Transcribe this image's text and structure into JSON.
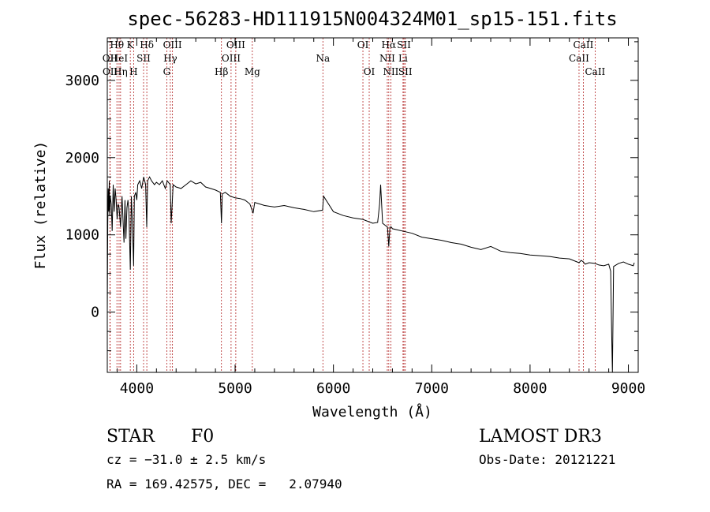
{
  "chart_data": {
    "type": "line",
    "title": "spec-56283-HD111915N004324M01_sp15-151.fits",
    "xlabel": "Wavelength (Å)",
    "ylabel": "Flux (relative)",
    "xlim": [
      3700,
      9100
    ],
    "ylim": [
      -780,
      3550
    ],
    "xticks": [
      4000,
      5000,
      6000,
      7000,
      8000,
      9000
    ],
    "yticks": [
      0,
      1000,
      2000,
      3000
    ],
    "grid": false,
    "series": [
      {
        "name": "spectrum",
        "x": [
          3700,
          3705,
          3710,
          3715,
          3720,
          3725,
          3730,
          3740,
          3750,
          3760,
          3770,
          3780,
          3790,
          3800,
          3810,
          3820,
          3835,
          3850,
          3860,
          3870,
          3880,
          3889,
          3900,
          3910,
          3920,
          3934,
          3945,
          3955,
          3968,
          3975,
          3990,
          4000,
          4010,
          4030,
          4050,
          4070,
          4090,
          4101,
          4110,
          4130,
          4150,
          4180,
          4200,
          4230,
          4260,
          4290,
          4310,
          4340,
          4350,
          4370,
          4400,
          4450,
          4500,
          4550,
          4600,
          4650,
          4700,
          4750,
          4800,
          4850,
          4861,
          4870,
          4900,
          4950,
          5000,
          5050,
          5100,
          5150,
          5170,
          5183,
          5200,
          5300,
          5400,
          5500,
          5600,
          5700,
          5800,
          5890,
          5900,
          6000,
          6100,
          6200,
          6300,
          6400,
          6450,
          6470,
          6480,
          6500,
          6540,
          6550,
          6563,
          6575,
          6590,
          6600,
          6700,
          6800,
          6900,
          7000,
          7100,
          7200,
          7300,
          7400,
          7500,
          7600,
          7650,
          7700,
          7800,
          7900,
          8000,
          8100,
          8200,
          8300,
          8400,
          8498,
          8520,
          8542,
          8560,
          8600,
          8662,
          8700,
          8750,
          8800,
          8820,
          8830,
          8838,
          8850,
          8900,
          8950,
          9000,
          9050,
          9060
        ],
        "values": [
          0,
          1150,
          1600,
          1300,
          1700,
          1250,
          1500,
          1400,
          1050,
          1650,
          1300,
          1600,
          1450,
          1200,
          1400,
          1350,
          1100,
          1500,
          1200,
          900,
          1450,
          950,
          1350,
          1450,
          1300,
          550,
          1500,
          1150,
          600,
          1500,
          1550,
          1450,
          1650,
          1700,
          1600,
          1750,
          1650,
          1100,
          1700,
          1750,
          1700,
          1650,
          1680,
          1650,
          1700,
          1600,
          1700,
          1650,
          1150,
          1650,
          1620,
          1600,
          1650,
          1700,
          1660,
          1680,
          1620,
          1600,
          1580,
          1550,
          1150,
          1530,
          1550,
          1500,
          1480,
          1470,
          1450,
          1400,
          1330,
          1280,
          1420,
          1380,
          1360,
          1380,
          1350,
          1330,
          1300,
          1320,
          1500,
          1300,
          1250,
          1220,
          1200,
          1150,
          1160,
          1400,
          1650,
          1150,
          1110,
          1100,
          850,
          1100,
          1100,
          1080,
          1050,
          1020,
          970,
          950,
          930,
          900,
          880,
          840,
          810,
          850,
          820,
          790,
          770,
          760,
          740,
          730,
          720,
          700,
          690,
          640,
          670,
          650,
          620,
          640,
          630,
          610,
          600,
          620,
          530,
          -300,
          -780,
          590,
          630,
          650,
          620,
          600,
          640
        ]
      }
    ],
    "spectral_lines": [
      {
        "label": "OII",
        "wavelength": 3727,
        "row": 2
      },
      {
        "label": "OII",
        "wavelength": 3729,
        "row": 3
      },
      {
        "label": "Hθ",
        "wavelength": 3798,
        "row": 1
      },
      {
        "label": "HeI",
        "wavelength": 3820,
        "row": 2
      },
      {
        "label": "Hη",
        "wavelength": 3835,
        "row": 3
      },
      {
        "label": "K",
        "wavelength": 3934,
        "row": 1
      },
      {
        "label": "SII",
        "wavelength": 4069,
        "row": 2
      },
      {
        "label": "H",
        "wavelength": 3968,
        "row": 3
      },
      {
        "label": "Hδ",
        "wavelength": 4102,
        "row": 1
      },
      {
        "label": "OIII",
        "wavelength": 4363,
        "row": 1
      },
      {
        "label": "Hγ",
        "wavelength": 4341,
        "row": 2
      },
      {
        "label": "G",
        "wavelength": 4305,
        "row": 3
      },
      {
        "label": "OIII",
        "wavelength": 5007,
        "row": 1
      },
      {
        "label": "OIII",
        "wavelength": 4959,
        "row": 2
      },
      {
        "label": "Hβ",
        "wavelength": 4861,
        "row": 3
      },
      {
        "label": "Mg",
        "wavelength": 5175,
        "row": 3
      },
      {
        "label": "Na",
        "wavelength": 5893,
        "row": 2
      },
      {
        "label": "OI",
        "wavelength": 6300,
        "row": 1
      },
      {
        "label": "OI",
        "wavelength": 6364,
        "row": 3
      },
      {
        "label": "Hα",
        "wavelength": 6563,
        "row": 1
      },
      {
        "label": "SII",
        "wavelength": 6717,
        "row": 1
      },
      {
        "label": "NII",
        "wavelength": 6548,
        "row": 2
      },
      {
        "label": "Li",
        "wavelength": 6708,
        "row": 2
      },
      {
        "label": "NII",
        "wavelength": 6584,
        "row": 3
      },
      {
        "label": "SII",
        "wavelength": 6731,
        "row": 3
      },
      {
        "label": "CaII",
        "wavelength": 8542,
        "row": 1
      },
      {
        "label": "CaII",
        "wavelength": 8498,
        "row": 2
      },
      {
        "label": "CaII",
        "wavelength": 8662,
        "row": 3
      }
    ]
  },
  "footer": {
    "object_class": "STAR",
    "subclass": "F0",
    "survey": "LAMOST DR3",
    "redshift": "cz = −31.0 ± 2.5 km/s",
    "obs_date": "Obs-Date: 20121221",
    "coords": "RA = 169.42575, DEC =   2.07940"
  },
  "colors": {
    "spectrum": "#000000",
    "line_marker": "#b22222",
    "axis": "#000000"
  }
}
